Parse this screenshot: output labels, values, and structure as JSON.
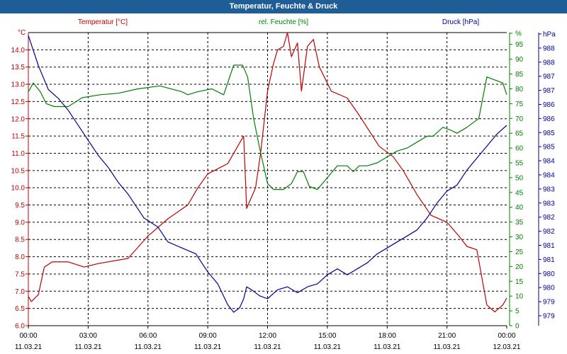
{
  "title": "Temperatur, Feuchte & Druck",
  "chart_data": {
    "type": "line",
    "grid": true,
    "x_ticks": [
      {
        "time": "00:00",
        "date": "11.03.21"
      },
      {
        "time": "03:00",
        "date": "11.03.21"
      },
      {
        "time": "06:00",
        "date": "11.03.21"
      },
      {
        "time": "09:00",
        "date": "11.03.21"
      },
      {
        "time": "12:00",
        "date": "11.03.21"
      },
      {
        "time": "15:00",
        "date": "11.03.21"
      },
      {
        "time": "18:00",
        "date": "11.03.21"
      },
      {
        "time": "21:00",
        "date": "11.03.21"
      },
      {
        "time": "00:00",
        "date": "12.03.21"
      }
    ],
    "axes": {
      "temperature": {
        "label": "Temperatur [°C]",
        "unit": "°C",
        "color": "#c00000",
        "ylim": [
          6.0,
          14.5
        ],
        "ticks": [
          "6.0",
          "6.5",
          "7.0",
          "7.5",
          "8.0",
          "8.5",
          "9.0",
          "9.5",
          "10.0",
          "10.5",
          "11.0",
          "11.5",
          "12.0",
          "12.5",
          "13.0",
          "13.5",
          "14.0"
        ]
      },
      "humidity": {
        "label": "rel. Feuchte [%]",
        "unit": "%",
        "color": "#008000",
        "ylim": [
          0,
          99
        ],
        "ticks": [
          "0",
          "5",
          "10",
          "15",
          "20",
          "25",
          "30",
          "35",
          "40",
          "45",
          "50",
          "55",
          "60",
          "65",
          "70",
          "75",
          "80",
          "85",
          "90",
          "95",
          "%"
        ]
      },
      "pressure": {
        "label": "Druck [hPa]",
        "unit": "hPa",
        "color": "#000099",
        "ylim": [
          978.6,
          988.4
        ],
        "ticks": [
          "979",
          "979",
          "980",
          "980",
          "981",
          "981",
          "982",
          "982",
          "983",
          "983",
          "984",
          "984",
          "985",
          "985",
          "986",
          "986",
          "987",
          "987",
          "988",
          "988",
          "hPa"
        ]
      }
    },
    "series": [
      {
        "name": "Temperatur [°C]",
        "axis": "temperature",
        "color": "#c00000",
        "x": [
          0,
          0.15,
          0.5,
          0.8,
          1.2,
          2,
          2.8,
          3.5,
          5,
          6,
          7,
          8,
          8.5,
          9,
          10,
          10.8,
          10.95,
          11.4,
          11.65,
          12,
          12.3,
          12.5,
          12.8,
          13,
          13.2,
          13.5,
          13.7,
          14,
          14.3,
          14.6,
          15.2,
          16,
          16.6,
          17.6,
          18.3,
          18.8,
          19.5,
          20.2,
          21,
          21.6,
          22,
          22.5,
          23,
          23.4,
          23.8,
          24
        ],
        "y": [
          6.85,
          6.7,
          6.9,
          7.7,
          7.85,
          7.85,
          7.7,
          7.8,
          7.95,
          8.6,
          9.1,
          9.5,
          10.0,
          10.4,
          10.7,
          11.5,
          9.4,
          10.0,
          11.0,
          12.8,
          13.6,
          14.0,
          14.1,
          14.5,
          13.8,
          14.2,
          12.8,
          14.1,
          14.3,
          13.5,
          12.8,
          12.6,
          12.1,
          11.2,
          10.9,
          10.5,
          9.8,
          9.2,
          9.0,
          8.6,
          8.3,
          8.2,
          6.6,
          6.4,
          6.6,
          6.8
        ]
      },
      {
        "name": "rel. Feuchte [%]",
        "axis": "humidity",
        "color": "#008000",
        "x": [
          0,
          0.25,
          0.6,
          0.9,
          1.3,
          2,
          2.7,
          3.6,
          4.5,
          5.5,
          6.6,
          7.7,
          8,
          8.5,
          9.2,
          9.8,
          10.3,
          10.75,
          11,
          11.3,
          11.6,
          12,
          12.3,
          12.8,
          13.2,
          13.5,
          13.8,
          14.1,
          14.5,
          15,
          15.5,
          16,
          16.3,
          16.6,
          17,
          17.5,
          18,
          18.5,
          19,
          19.5,
          20,
          20.3,
          20.8,
          21.2,
          21.5,
          22,
          22.6,
          23,
          23.4,
          23.8,
          24
        ],
        "y": [
          79,
          82,
          79,
          75,
          74,
          74,
          77,
          78,
          78.5,
          80,
          81,
          79,
          78,
          79,
          80,
          78,
          88,
          88,
          84,
          70,
          60,
          48,
          46,
          46,
          48,
          52,
          52,
          47,
          46,
          50,
          54,
          54,
          52,
          54,
          54,
          55,
          57,
          59,
          60,
          62,
          64,
          64,
          67,
          66,
          65,
          67,
          70,
          84,
          83,
          82,
          78
        ]
      },
      {
        "name": "Druck [hPa]",
        "axis": "pressure",
        "color": "#000099",
        "x": [
          0,
          0.5,
          1,
          1.5,
          2,
          3,
          3.5,
          4,
          4.5,
          5,
          5.8,
          6.5,
          7,
          7.7,
          8.4,
          9,
          9.5,
          10,
          10.3,
          10.6,
          10.8,
          10.95,
          11.2,
          11.6,
          12,
          12.5,
          13,
          13.5,
          14,
          14.5,
          15,
          15.5,
          16,
          16.5,
          17,
          17.5,
          18,
          18.5,
          19,
          19.5,
          20,
          20.5,
          21,
          21.5,
          22,
          22.5,
          23,
          23.5,
          24
        ],
        "y": [
          988.3,
          987.3,
          986.5,
          986.2,
          985.8,
          984.8,
          984.3,
          983.9,
          983.4,
          983.0,
          982.2,
          981.9,
          981.4,
          981.2,
          981.0,
          980.4,
          980.0,
          979.3,
          979.05,
          979.2,
          979.5,
          979.9,
          979.8,
          979.6,
          979.5,
          979.8,
          979.9,
          979.7,
          979.9,
          980.0,
          980.3,
          980.5,
          980.3,
          980.5,
          980.7,
          981.0,
          981.2,
          981.4,
          981.6,
          981.8,
          982.2,
          982.7,
          983.1,
          983.3,
          983.8,
          984.2,
          984.6,
          985.0,
          985.3
        ]
      }
    ]
  }
}
